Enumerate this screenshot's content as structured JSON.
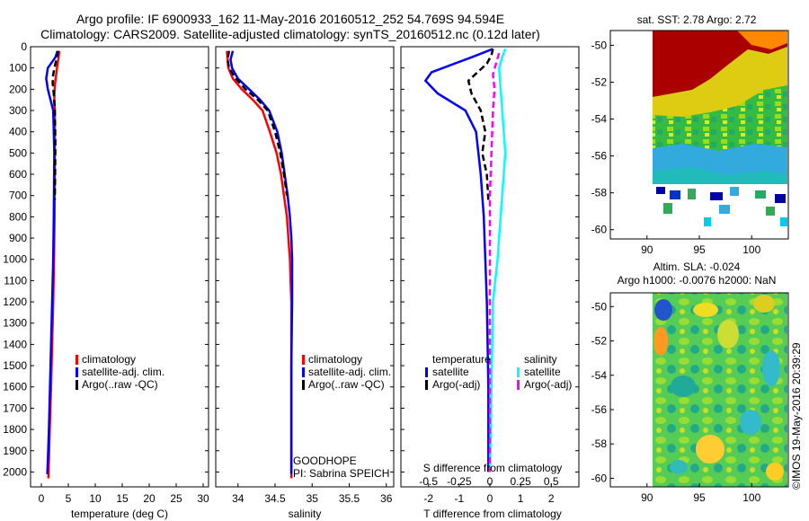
{
  "title_line1": "Argo profile: IF 6900933_162 11-May-2016 20160512_252 54.769S 94.594E",
  "title_line2": "Climatology: CARS2009. Satellite-adjusted climatology: synTS_20160512.nc (0.12d later)",
  "sst_title": "sat. SST: 2.78 Argo: 2.72",
  "sla_title_line1": "Altim. SLA: -0.024",
  "sla_title_line2": "Argo h1000: -0.0076 h2000: NaN",
  "credit": "©IMOS 19-May-2016 20:39:29",
  "float_info_line1": "GOODHOPE",
  "float_info_line2": "PI: Sabrina SPEICH",
  "colors": {
    "climatology": "#ff0000",
    "satellite": "#0000ff",
    "argo": "#000000",
    "s_satellite": "#00ffff",
    "s_argo": "#ff00ff"
  },
  "chart_data": [
    {
      "type": "line",
      "name": "temperature-profile",
      "xlabel": "temperature (deg C)",
      "ylabel": "",
      "xlim": [
        -2,
        31
      ],
      "ylim": [
        2070,
        0
      ],
      "xticks": [
        0,
        5,
        10,
        15,
        20,
        25,
        30
      ],
      "yticks": [
        0,
        100,
        200,
        300,
        400,
        500,
        600,
        700,
        800,
        900,
        1000,
        1100,
        1200,
        1300,
        1400,
        1500,
        1600,
        1700,
        1800,
        1900,
        2000
      ],
      "legend": [
        "climatology",
        "satellite-adj. clim.",
        "Argo(..raw -QC)"
      ],
      "legend_position": "lower-center",
      "series": [
        {
          "name": "climatology",
          "color": "#ff0000",
          "style": "solid",
          "points": [
            [
              3.3,
              20
            ],
            [
              3.2,
              50
            ],
            [
              3.0,
              80
            ],
            [
              2.8,
              120
            ],
            [
              2.5,
              180
            ],
            [
              2.4,
              240
            ],
            [
              2.5,
              300
            ],
            [
              2.5,
              500
            ],
            [
              2.45,
              800
            ],
            [
              2.35,
              1000
            ],
            [
              2.2,
              1200
            ],
            [
              2.0,
              1400
            ],
            [
              1.8,
              1600
            ],
            [
              1.55,
              1800
            ],
            [
              1.4,
              1950
            ],
            [
              1.3,
              2030
            ]
          ]
        },
        {
          "name": "satellite-adj. clim.",
          "color": "#0000ff",
          "style": "solid",
          "points": [
            [
              3.0,
              20
            ],
            [
              2.6,
              50
            ],
            [
              1.2,
              100
            ],
            [
              0.9,
              150
            ],
            [
              1.2,
              200
            ],
            [
              1.7,
              250
            ],
            [
              2.2,
              300
            ],
            [
              2.4,
              500
            ],
            [
              2.3,
              800
            ],
            [
              2.2,
              1000
            ],
            [
              2.0,
              1200
            ],
            [
              1.8,
              1400
            ],
            [
              1.6,
              1600
            ],
            [
              1.4,
              1800
            ],
            [
              1.2,
              1950
            ],
            [
              1.1,
              2010
            ]
          ]
        },
        {
          "name": "Argo(..raw -QC)",
          "color": "#000000",
          "style": "dashed",
          "points": [
            [
              3.1,
              20
            ],
            [
              2.9,
              50
            ],
            [
              2.6,
              80
            ],
            [
              2.2,
              130
            ],
            [
              2.1,
              170
            ],
            [
              2.3,
              220
            ],
            [
              2.5,
              300
            ],
            [
              2.6,
              450
            ],
            [
              2.55,
              600
            ],
            [
              2.5,
              720
            ]
          ]
        }
      ]
    },
    {
      "type": "line",
      "name": "salinity-profile",
      "xlabel": "salinity",
      "ylabel": "",
      "xlim": [
        33.7,
        36.1
      ],
      "ylim": [
        2070,
        0
      ],
      "xticks": [
        34,
        34.5,
        35,
        35.5,
        36
      ],
      "legend": [
        "climatology",
        "satellite-adj. clim.",
        "Argo(..raw -QC)"
      ],
      "legend_position": "lower-center",
      "series": [
        {
          "name": "climatology",
          "color": "#ff0000",
          "style": "solid",
          "points": [
            [
              33.85,
              20
            ],
            [
              33.86,
              60
            ],
            [
              33.87,
              100
            ],
            [
              33.93,
              150
            ],
            [
              34.05,
              200
            ],
            [
              34.2,
              250
            ],
            [
              34.33,
              300
            ],
            [
              34.43,
              400
            ],
            [
              34.52,
              500
            ],
            [
              34.58,
              600
            ],
            [
              34.62,
              700
            ],
            [
              34.66,
              800
            ],
            [
              34.68,
              900
            ],
            [
              34.7,
              1000
            ],
            [
              34.72,
              1200
            ],
            [
              34.72,
              1500
            ],
            [
              34.72,
              1800
            ],
            [
              34.72,
              2030
            ]
          ]
        },
        {
          "name": "satellite-adj. clim.",
          "color": "#0000ff",
          "style": "solid",
          "points": [
            [
              33.93,
              20
            ],
            [
              33.9,
              60
            ],
            [
              33.92,
              100
            ],
            [
              34.0,
              150
            ],
            [
              34.15,
              200
            ],
            [
              34.3,
              250
            ],
            [
              34.42,
              300
            ],
            [
              34.53,
              400
            ],
            [
              34.59,
              500
            ],
            [
              34.63,
              600
            ],
            [
              34.67,
              700
            ],
            [
              34.7,
              800
            ],
            [
              34.72,
              900
            ],
            [
              34.73,
              1000
            ],
            [
              34.73,
              1200
            ],
            [
              34.72,
              1500
            ],
            [
              34.72,
              1800
            ],
            [
              34.72,
              2010
            ]
          ]
        },
        {
          "name": "Argo(..raw -QC)",
          "color": "#000000",
          "style": "dashed",
          "points": [
            [
              33.88,
              20
            ],
            [
              33.86,
              60
            ],
            [
              33.88,
              100
            ],
            [
              33.97,
              150
            ],
            [
              34.1,
              200
            ],
            [
              34.27,
              250
            ],
            [
              34.4,
              300
            ],
            [
              34.5,
              400
            ],
            [
              34.57,
              500
            ],
            [
              34.62,
              600
            ],
            [
              34.66,
              700
            ]
          ]
        }
      ]
    },
    {
      "type": "line",
      "name": "difference-profile",
      "xlabel": "T difference from climatology",
      "top_xlabel": "S difference from climatology",
      "ylabel": "",
      "xlim": [
        -2.9,
        2.9
      ],
      "ylim": [
        2070,
        0
      ],
      "xticks": [
        -2,
        -1,
        0,
        1,
        2
      ],
      "top_xticks": [
        "-0.5",
        "-0.25",
        "0",
        "0.25",
        "0.5"
      ],
      "top_xtick_values": [
        -2,
        -1,
        0,
        1,
        2
      ],
      "legend_groups": [
        {
          "heading": "temperature",
          "items": [
            "satellite",
            "Argo(-adj)"
          ]
        },
        {
          "heading": "salinity",
          "items": [
            "satellite",
            "Argo(-adj)"
          ]
        }
      ],
      "legend_position": "lower-center",
      "series": [
        {
          "name": "T satellite",
          "color": "#0000ff",
          "style": "solid",
          "points": [
            [
              0.1,
              10
            ],
            [
              -0.6,
              50
            ],
            [
              -1.9,
              120
            ],
            [
              -2.1,
              160
            ],
            [
              -1.7,
              220
            ],
            [
              -0.8,
              300
            ],
            [
              -0.45,
              400
            ],
            [
              -0.3,
              600
            ],
            [
              -0.2,
              800
            ],
            [
              -0.15,
              1000
            ],
            [
              -0.1,
              1200
            ],
            [
              -0.05,
              1600
            ],
            [
              -0.05,
              2000
            ]
          ]
        },
        {
          "name": "T Argo(-adj)",
          "color": "#000000",
          "style": "dashed",
          "points": [
            [
              0.1,
              10
            ],
            [
              0.05,
              40
            ],
            [
              -0.1,
              80
            ],
            [
              -0.4,
              120
            ],
            [
              -0.7,
              160
            ],
            [
              -0.6,
              220
            ],
            [
              -0.3,
              300
            ],
            [
              -0.15,
              400
            ],
            [
              -0.25,
              500
            ],
            [
              -0.1,
              600
            ],
            [
              -0.05,
              720
            ]
          ]
        },
        {
          "name": "S satellite",
          "color": "#00ffff",
          "style": "solid",
          "points": [
            [
              0.5,
              10
            ],
            [
              0.4,
              50
            ],
            [
              0.3,
              100
            ],
            [
              0.35,
              200
            ],
            [
              0.4,
              300
            ],
            [
              0.45,
              400
            ],
            [
              0.5,
              500
            ],
            [
              0.45,
              600
            ],
            [
              0.35,
              800
            ],
            [
              0.25,
              1000
            ],
            [
              0.1,
              1200
            ],
            [
              0.05,
              1600
            ],
            [
              0.0,
              2000
            ]
          ]
        },
        {
          "name": "S Argo(-adj)",
          "color": "#ff00ff",
          "style": "dashed",
          "points": [
            [
              0.3,
              30
            ],
            [
              0.2,
              80
            ],
            [
              0.1,
              130
            ],
            [
              0.15,
              200
            ],
            [
              0.1,
              300
            ],
            [
              0.05,
              500
            ],
            [
              0.0,
              700
            ],
            [
              0.0,
              1000
            ],
            [
              0.0,
              1500
            ],
            [
              0.0,
              2000
            ]
          ]
        }
      ]
    },
    {
      "type": "heatmap",
      "name": "sst-map",
      "title": "sat. SST: 2.78 Argo: 2.72",
      "xlim": [
        86.5,
        103.5
      ],
      "ylim": [
        -60.5,
        -49.2
      ],
      "xticks": [
        90,
        95,
        100
      ],
      "yticks": [
        -50,
        -52,
        -54,
        -56,
        -58,
        -60
      ]
    },
    {
      "type": "heatmap",
      "name": "sla-map",
      "title": "Altim. SLA: -0.024",
      "subtitle": "Argo h1000: -0.0076 h2000: NaN",
      "xlim": [
        86.5,
        103.5
      ],
      "ylim": [
        -60.5,
        -49.2
      ],
      "xticks": [
        90,
        95,
        100
      ],
      "yticks": [
        -50,
        -52,
        -54,
        -56,
        -58,
        -60
      ]
    }
  ]
}
